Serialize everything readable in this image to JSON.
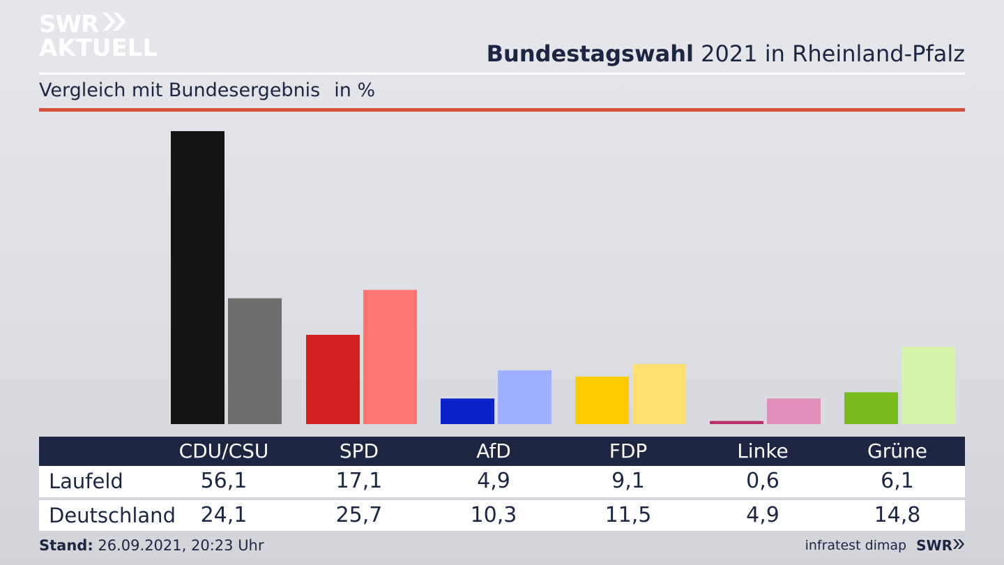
{
  "logo": {
    "line1": "SWR",
    "line2": "AKTUELL"
  },
  "header": {
    "title_bold": "Bundestagswahl",
    "title_rest": "2021 in Rheinland-Pfalz",
    "subtitle": "Vergleich mit Bundesergebnis",
    "unit": "in %"
  },
  "colors": {
    "navy": "#1c2541",
    "rule_red": "#d2503c"
  },
  "chart_data": {
    "type": "bar",
    "title": "Bundestagswahl 2021 in Rheinland-Pfalz",
    "subtitle": "Vergleich mit Bundesergebnis",
    "ylabel": "in %",
    "ylim": [
      0,
      56.1
    ],
    "categories": [
      "CDU/CSU",
      "SPD",
      "AfD",
      "FDP",
      "Linke",
      "Grüne"
    ],
    "series": [
      {
        "name": "Laufeld",
        "values": [
          56.1,
          17.1,
          4.9,
          9.1,
          0.6,
          6.1
        ],
        "colors": [
          "#141414",
          "#d61f1f",
          "#0a23c8",
          "#ffcc00",
          "#b8306e",
          "#78bc1e"
        ]
      },
      {
        "name": "Deutschland",
        "values": [
          24.1,
          25.7,
          10.3,
          11.5,
          4.9,
          14.8
        ],
        "colors": [
          "#6f6e6c",
          "#ff7570",
          "#9db0ff",
          "#ffdf70",
          "#e08eba",
          "#d4f4a8"
        ]
      }
    ],
    "grid": false,
    "legend": "table-below"
  },
  "table": {
    "headers": [
      "CDU/CSU",
      "SPD",
      "AfD",
      "FDP",
      "Linke",
      "Grüne"
    ],
    "rows": [
      {
        "label": "Laufeld",
        "values": [
          "56,1",
          "17,1",
          "4,9",
          "9,1",
          "0,6",
          "6,1"
        ]
      },
      {
        "label": "Deutschland",
        "values": [
          "24,1",
          "25,7",
          "10,3",
          "11,5",
          "4,9",
          "14,8"
        ]
      }
    ]
  },
  "footer": {
    "stand_label": "Stand:",
    "stand_value": "26.09.2021, 20:23 Uhr",
    "source": "infratest dimap",
    "brand": "SWR"
  }
}
